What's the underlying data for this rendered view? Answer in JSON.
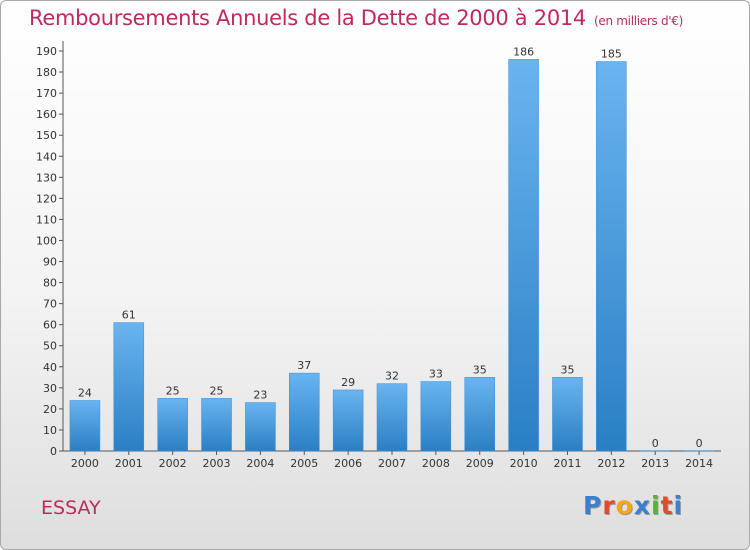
{
  "title": "Remboursements Annuels de la Dette de 2000 à 2014",
  "title_unit": "(en milliers d'€)",
  "commune": "ESSAY",
  "logo": {
    "text": "Proxiti",
    "letter_colors": [
      "#3a7fd0",
      "#e14b2b",
      "#f0a818",
      "#3a7fd0",
      "#5ab03a",
      "#e14b2b",
      "#3a7fd0"
    ]
  },
  "colors": {
    "bar_top": "#6ab4f0",
    "bar_bottom": "#2a7fc4",
    "title": "#c0295f"
  },
  "chart_data": {
    "type": "bar",
    "categories": [
      "2000",
      "2001",
      "2002",
      "2003",
      "2004",
      "2005",
      "2006",
      "2007",
      "2008",
      "2009",
      "2010",
      "2011",
      "2012",
      "2013",
      "2014"
    ],
    "values": [
      24,
      61,
      25,
      25,
      23,
      37,
      29,
      32,
      33,
      35,
      186,
      35,
      185,
      0,
      0
    ],
    "data_labels": [
      "24",
      "61",
      "25",
      "25",
      "23",
      "37",
      "29",
      "32",
      "33",
      "35",
      "186",
      "35",
      "185",
      "0",
      "0"
    ],
    "yticks": [
      "0",
      "10",
      "20",
      "30",
      "40",
      "50",
      "60",
      "70",
      "80",
      "90",
      "100",
      "110",
      "120",
      "130",
      "140",
      "150",
      "160",
      "170",
      "180",
      "190"
    ],
    "ylim": [
      0,
      190
    ],
    "grid": false,
    "legend": "none",
    "title": "Remboursements Annuels de la Dette de 2000 à 2014",
    "xlabel": "",
    "ylabel": ""
  }
}
